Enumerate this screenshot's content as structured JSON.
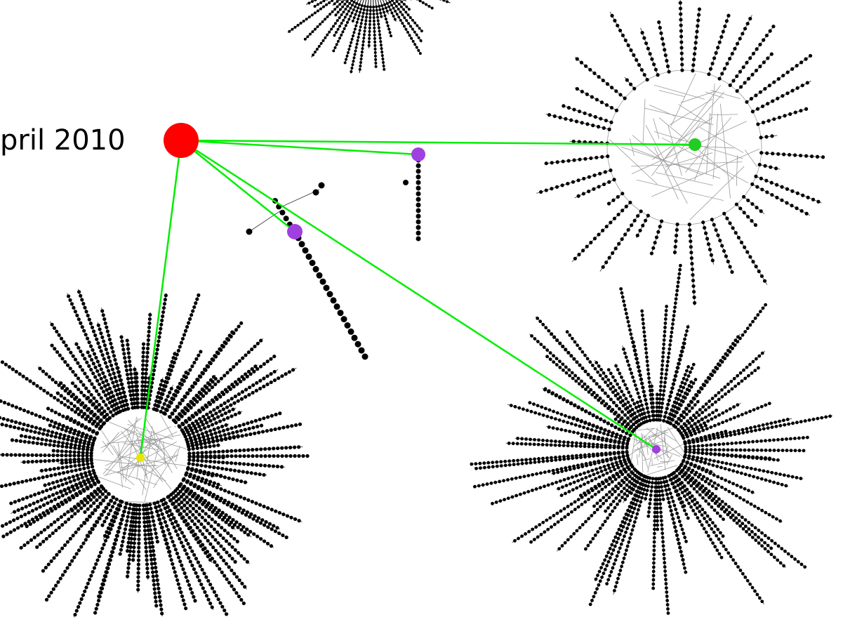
{
  "root": {
    "label": "pril 2010"
  },
  "colors": {
    "background": "#ffffff",
    "root_node": "#ff0000",
    "link": "#00ee00",
    "node": "#000000",
    "edge": "#9a9a9a",
    "highlight_purple": "#a040e0",
    "highlight_green": "#22cc22",
    "highlight_yellow": "#e6e600"
  }
}
